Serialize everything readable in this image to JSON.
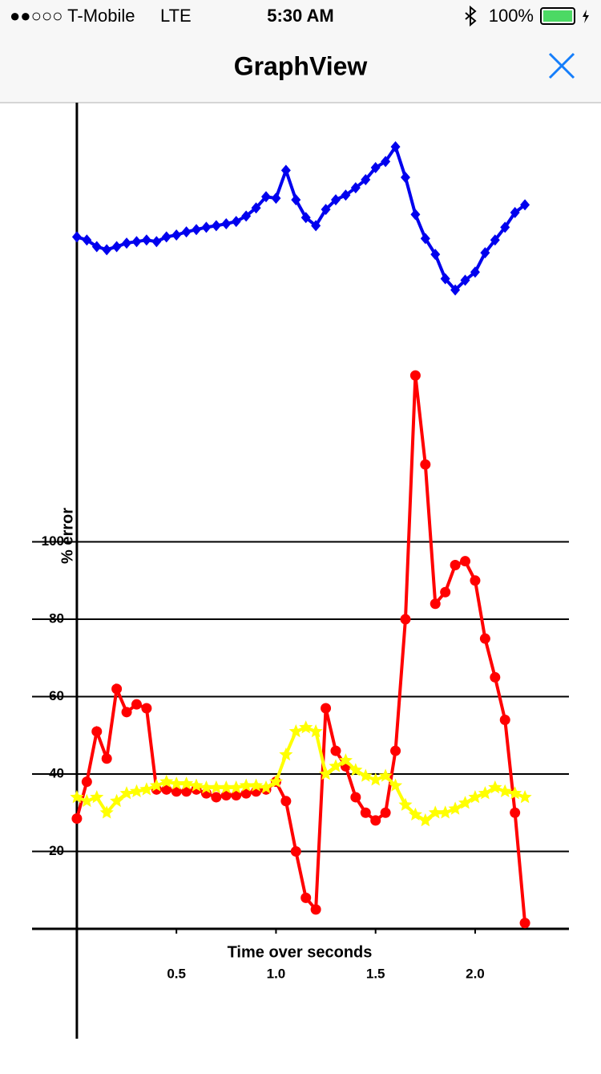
{
  "status_bar": {
    "carrier": "●●○○○ T-Mobile",
    "network": "LTE",
    "time": "5:30 AM",
    "battery": "100%"
  },
  "nav_bar": {
    "title": "GraphView"
  },
  "chart_data": {
    "type": "line",
    "x_label": "Time over seconds",
    "y_label": "% error",
    "x": [
      0,
      0.05,
      0.1,
      0.15,
      0.2,
      0.25,
      0.3,
      0.35,
      0.4,
      0.45,
      0.5,
      0.55,
      0.6,
      0.65,
      0.7,
      0.75,
      0.8,
      0.85,
      0.9,
      0.95,
      1.0,
      1.05,
      1.1,
      1.15,
      1.2,
      1.25,
      1.3,
      1.35,
      1.4,
      1.45,
      1.5,
      1.55,
      1.6,
      1.65,
      1.7,
      1.75,
      1.8,
      1.85,
      1.9,
      1.95,
      2.0,
      2.05,
      2.1,
      2.15,
      2.2,
      2.25
    ],
    "series": [
      {
        "color": "#0000ee",
        "marker": "diamond",
        "values": [
          178.8,
          178,
          176.3,
          175.5,
          176.3,
          177.2,
          177.6,
          178,
          177.6,
          178.8,
          179.3,
          180.1,
          180.7,
          181.3,
          181.7,
          182.2,
          182.8,
          184.2,
          186.3,
          189.2,
          188.8,
          196,
          188.4,
          183.8,
          181.7,
          185.9,
          188.4,
          189.6,
          191.5,
          193.6,
          196.7,
          198.3,
          202.1,
          194.2,
          184.6,
          178.4,
          174.3,
          168,
          165.1,
          167.6,
          169.7,
          174.7,
          178,
          181.3,
          185.1,
          187.1
        ]
      },
      {
        "color": "#ff0000",
        "marker": "circle",
        "values": [
          28.5,
          38,
          51,
          44,
          62,
          56,
          58,
          57,
          36,
          36,
          35.5,
          35.5,
          36,
          35,
          34,
          34.5,
          34.5,
          35,
          35.5,
          36,
          38,
          33,
          20,
          8,
          5,
          57,
          46,
          42,
          34,
          30,
          28,
          30,
          46,
          80,
          143,
          120,
          84,
          87,
          94,
          95,
          90,
          75,
          65,
          54,
          30,
          1.5
        ]
      },
      {
        "color": "#ffff00",
        "marker": "star",
        "values": [
          34,
          33,
          34,
          30,
          33,
          35,
          35.5,
          36,
          37,
          38,
          37.5,
          37.5,
          37,
          36.5,
          36.5,
          36.5,
          36.5,
          37,
          37,
          36.5,
          38,
          45,
          51,
          52,
          51,
          40,
          42,
          43.5,
          41,
          39.5,
          38.5,
          39.5,
          37,
          32,
          29.5,
          28,
          30,
          30,
          31,
          32.5,
          34,
          35,
          36.5,
          35.5,
          35,
          34
        ]
      }
    ],
    "xlim": [
      -0.225,
      2.471
    ],
    "ylim": [
      -28.4,
      213.5
    ],
    "xticks": [
      0.5,
      {
        "value": 1,
        "label": "1.0"
      },
      1.5,
      {
        "value": 2,
        "label": "2.0"
      }
    ],
    "yticks": [
      20,
      40,
      60,
      80,
      100
    ],
    "grid": true
  }
}
